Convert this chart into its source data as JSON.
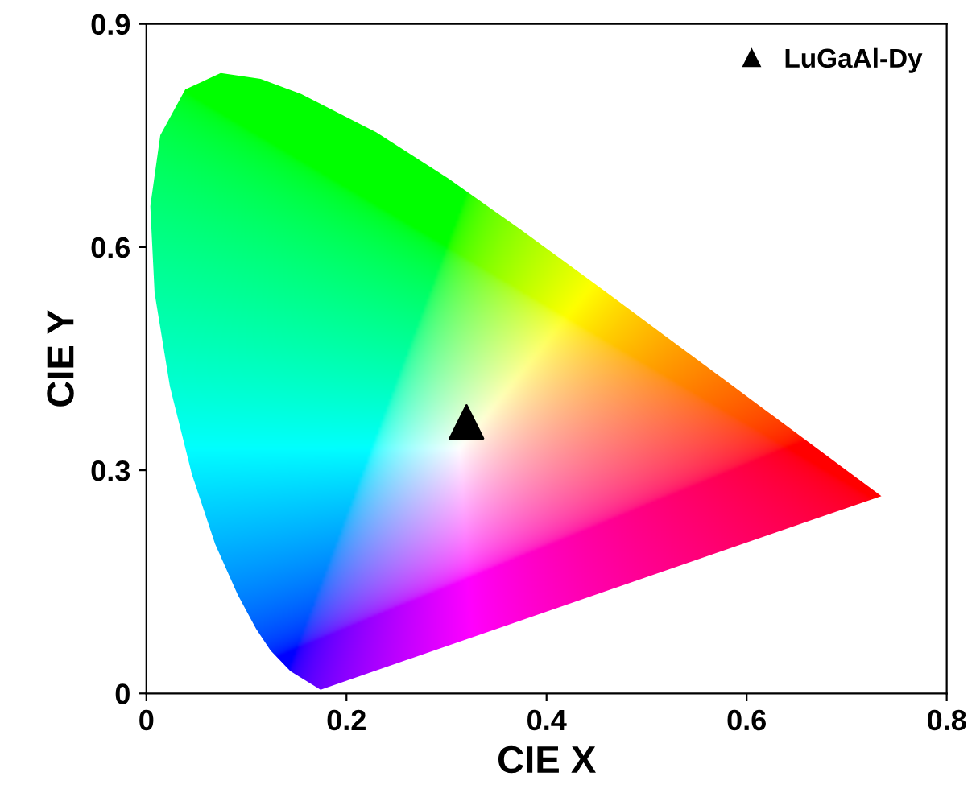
{
  "chart_data": {
    "type": "scatter",
    "xlabel": "CIE X",
    "ylabel": "CIE Y",
    "series": [
      {
        "name": "LuGaAl-Dy",
        "color": "#000000",
        "x": [
          0.32
        ],
        "values": [
          0.365
        ]
      }
    ],
    "marker": "triangle",
    "xlim": [
      0,
      0.8
    ],
    "ylim": [
      0,
      0.9
    ],
    "xticks": [
      0,
      0.2,
      0.4,
      0.6,
      0.8
    ],
    "yticks": [
      0,
      0.3,
      0.6,
      0.9
    ],
    "legend": "top right",
    "grid": false
  }
}
